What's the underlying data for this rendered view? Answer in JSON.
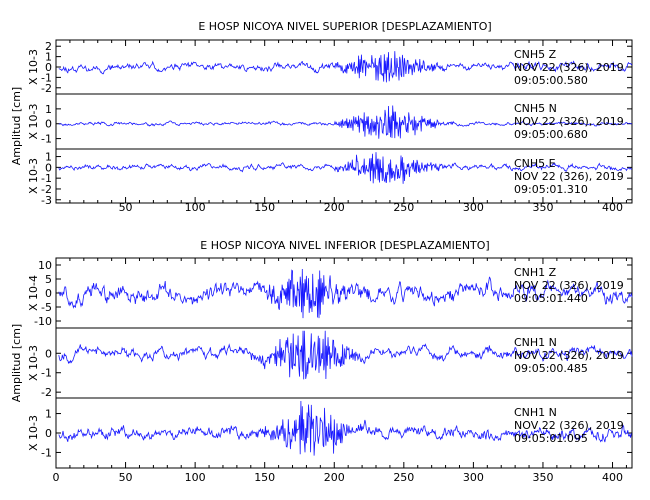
{
  "chart_data": [
    {
      "type": "line",
      "title": "E HOSP NICOYA NIVEL SUPERIOR [DESPLAZAMIENTO]",
      "ylabel": "Amplitud [cm]",
      "xlim": [
        0,
        414
      ],
      "xticks": [
        50,
        100,
        150,
        200,
        250,
        300,
        350,
        400
      ],
      "series": [
        {
          "station_line": "CNH5  Z",
          "date_line": "NOV 22 (326), 2019",
          "time_line": "09:05:00.580",
          "scale_label": "X 10-3",
          "ylim": [
            -2.6,
            2.6
          ],
          "yticks": [
            -2,
            -1,
            0,
            1,
            2
          ],
          "amplitude": 0.65,
          "event_peak": 1.8,
          "seed": 11
        },
        {
          "station_line": "CNH5  N",
          "date_line": "NOV 22 (326), 2019",
          "time_line": "09:05:00.680",
          "scale_label": "X 10-3",
          "ylim": [
            -1.7,
            2.0
          ],
          "yticks": [
            -1,
            0,
            1
          ],
          "amplitude": 0.2,
          "event_peak": 1.3,
          "seed": 23
        },
        {
          "station_line": "CNH5  E",
          "date_line": "NOV 22 (326), 2019",
          "time_line": "09:05:01.310",
          "scale_label": "X 10-3",
          "ylim": [
            -3.3,
            1.7
          ],
          "yticks": [
            -3,
            -2,
            -1,
            0,
            1
          ],
          "amplitude": 0.45,
          "event_peak": 1.7,
          "seed": 37
        }
      ]
    },
    {
      "type": "line",
      "title": "E HOSP NICOYA NIVEL INFERIOR [DESPLAZAMIENTO]",
      "ylabel": "Amplitud [cm]",
      "xlim": [
        0,
        414
      ],
      "xticks": [
        0,
        50,
        100,
        150,
        200,
        250,
        300,
        350,
        400
      ],
      "series": [
        {
          "station_line": "CNH1  Z",
          "date_line": "NOV 22 (326), 2019",
          "time_line": "09:05:01.440",
          "scale_label": "X 10-4",
          "ylim": [
            -12.5,
            12.5
          ],
          "yticks": [
            -10,
            -5,
            0,
            5,
            10
          ],
          "amplitude": 5.5,
          "event_peak": 10,
          "seed": 51
        },
        {
          "station_line": "CNH1  N",
          "date_line": "NOV 22 (326), 2019",
          "time_line": "09:05:00.485",
          "scale_label": "X 10-3",
          "ylim": [
            -2.3,
            1.3
          ],
          "yticks": [
            -2,
            -1,
            0
          ],
          "amplitude": 0.5,
          "event_peak": 1.7,
          "seed": 67
        },
        {
          "station_line": "CNH1  N",
          "date_line": "NOV 22 (326), 2019",
          "time_line": "09:05:01.095",
          "scale_label": "X 10-3",
          "ylim": [
            -1.8,
            1.8
          ],
          "yticks": [
            -1,
            0,
            1
          ],
          "amplitude": 0.55,
          "event_peak": 1.5,
          "seed": 79
        }
      ]
    }
  ]
}
